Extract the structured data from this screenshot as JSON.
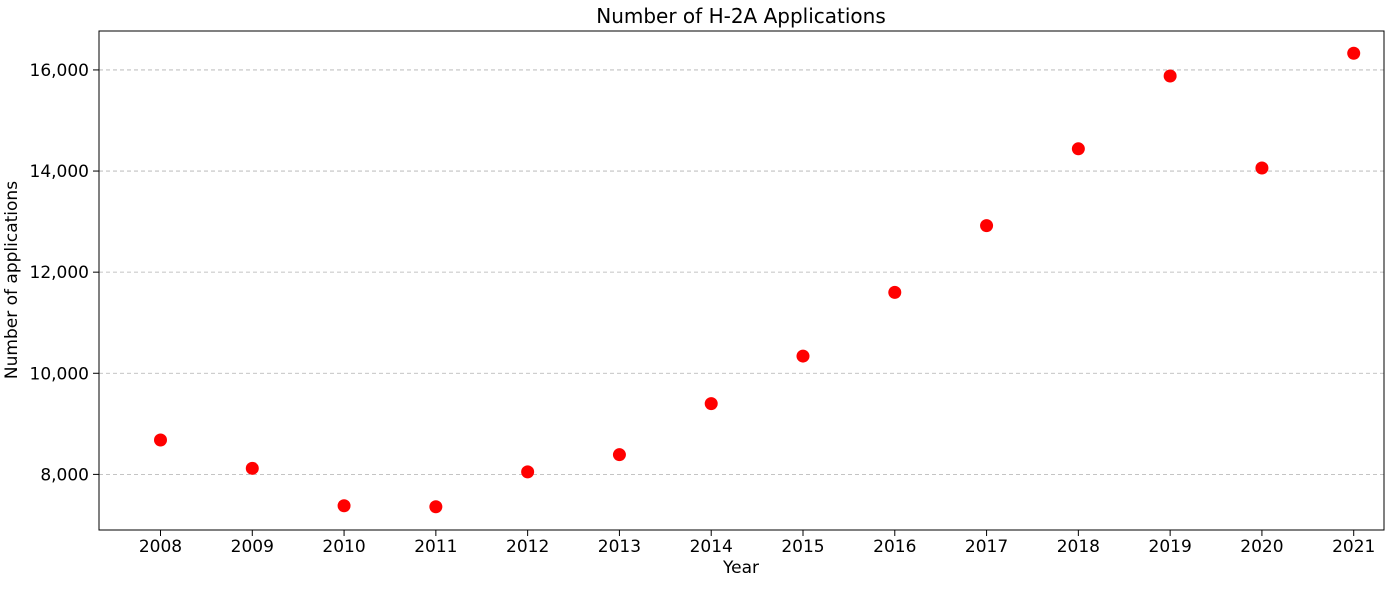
{
  "chart_data": {
    "type": "scatter",
    "title": "Number of H-2A Applications",
    "xlabel": "Year",
    "ylabel": "Number of applications",
    "x": [
      2008,
      2009,
      2010,
      2011,
      2012,
      2013,
      2014,
      2015,
      2016,
      2017,
      2018,
      2019,
      2020,
      2021
    ],
    "y": [
      8680,
      8120,
      7380,
      7360,
      8050,
      8390,
      9400,
      10340,
      11600,
      12920,
      14440,
      15880,
      14060,
      16330
    ],
    "xlim": [
      2007.33,
      2021.33
    ],
    "ylim": [
      6900,
      16770
    ],
    "x_ticks": [
      2008,
      2009,
      2010,
      2011,
      2012,
      2013,
      2014,
      2015,
      2016,
      2017,
      2018,
      2019,
      2020,
      2021
    ],
    "x_tick_labels": [
      "2008",
      "2009",
      "2010",
      "2011",
      "2012",
      "2013",
      "2014",
      "2015",
      "2016",
      "2017",
      "2018",
      "2019",
      "2020",
      "2021"
    ],
    "y_ticks": [
      8000,
      10000,
      12000,
      14000,
      16000
    ],
    "y_tick_labels": [
      "8,000",
      "10,000",
      "12,000",
      "14,000",
      "16,000"
    ],
    "grid": "horizontal dashed",
    "marker_color": "#ff0000",
    "grid_color": "#b0b0b0"
  }
}
